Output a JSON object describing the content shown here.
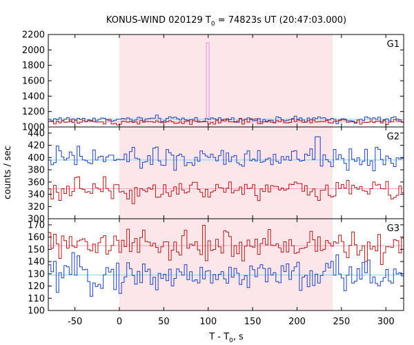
{
  "chart_data": {
    "type": "line",
    "title_prefix": "KONUS-WIND 020129 T",
    "title_sub": "0",
    "title_suffix": " = 74823s UT (20:47:03.000)",
    "xlabel_prefix": "T - T",
    "xlabel_sub": "0",
    "xlabel_suffix": ", s",
    "ylabel": "counts / sec",
    "xlim": [
      -80,
      320
    ],
    "xticks": [
      -50,
      0,
      50,
      100,
      150,
      200,
      250,
      300
    ],
    "bin_width": 2.944,
    "highlight_interval": [
      0,
      240
    ],
    "colors": {
      "blue": "#1f3fbf",
      "red": "#b01818",
      "cyan": "#6fd8e8",
      "pink": "#f0a0c0",
      "spike": "#e090e0",
      "shade": "#fde6ea"
    },
    "panels": [
      {
        "name": "G1",
        "ylim": [
          1000,
          2200
        ],
        "yticks": [
          1000,
          1200,
          1400,
          1600,
          1800,
          2000,
          2200
        ],
        "background_levels": {
          "blue": 1100,
          "red": 1065
        },
        "series": [
          {
            "color": "blue",
            "base": 1098,
            "noise": 22,
            "bins": []
          },
          {
            "color": "red",
            "base": 1068,
            "noise": 18,
            "bins": []
          }
        ],
        "spike": {
          "x_start": 98,
          "x_end": 101,
          "y": 2090
        }
      },
      {
        "name": "G2",
        "ylim": [
          300,
          450
        ],
        "yticks": [
          300,
          320,
          340,
          360,
          380,
          400,
          420,
          440
        ],
        "background_levels": {
          "blue": 396,
          "red": 349
        },
        "series": [
          {
            "color": "blue",
            "base": 398,
            "noise": 9,
            "bins": []
          },
          {
            "color": "red",
            "base": 348,
            "noise": 9,
            "bins": []
          }
        ],
        "peaks": {
          "blue": {
            "x": 221,
            "y": 434
          }
        }
      },
      {
        "name": "G3",
        "ylim": [
          100,
          175
        ],
        "yticks": [
          100,
          110,
          120,
          130,
          140,
          150,
          160,
          170
        ],
        "background_levels": {
          "blue": 129,
          "red": 153
        },
        "series": [
          {
            "color": "blue",
            "base": 129,
            "noise": 7,
            "bins": []
          },
          {
            "color": "red",
            "base": 153,
            "noise": 7,
            "bins": []
          }
        ]
      }
    ]
  }
}
